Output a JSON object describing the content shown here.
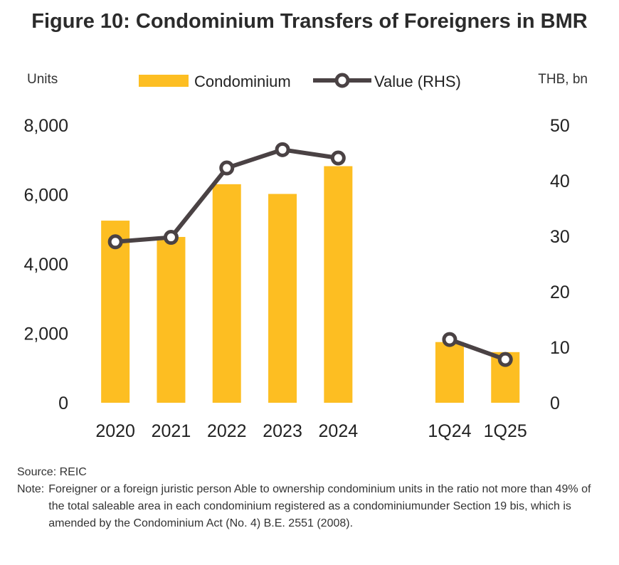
{
  "chart_data": {
    "type": "bar",
    "title": "Figure 10: Condominium Transfers of Foreigners in BMR",
    "ylabel": "Units",
    "y2label": "THB, bn",
    "categories": [
      "2020",
      "2021",
      "2022",
      "2023",
      "2024",
      "",
      "1Q24",
      "1Q25"
    ],
    "ylim": [
      0,
      8000
    ],
    "y2lim": [
      0,
      50
    ],
    "yticks": [
      "0",
      "2,000",
      "4,000",
      "6,000",
      "8,000"
    ],
    "y2ticks": [
      "0",
      "10",
      "20",
      "30",
      "40",
      "50"
    ],
    "legend_position": "top-center",
    "grid": false,
    "series": [
      {
        "name": "Condominium",
        "type": "bar",
        "axis": "left",
        "color": "#FDBE22",
        "values": [
          5250,
          4780,
          6300,
          6020,
          6820,
          null,
          1750,
          1460
        ]
      },
      {
        "name": "Value (RHS)",
        "type": "line",
        "axis": "right",
        "color": "#4a4244",
        "values": [
          29.0,
          29.8,
          42.3,
          45.6,
          44.1,
          null,
          11.4,
          7.8
        ]
      }
    ]
  },
  "footer": {
    "source": "Source: REIC",
    "note_label": "Note:",
    "note_text": "Foreigner or a foreign juristic person Able to ownership condominium units in the ratio not more than 49% of the total saleable area in each condominium registered as a condominiumunder Section 19 bis, which is amended by the Condominium Act (No. 4) B.E. 2551 (2008)."
  }
}
